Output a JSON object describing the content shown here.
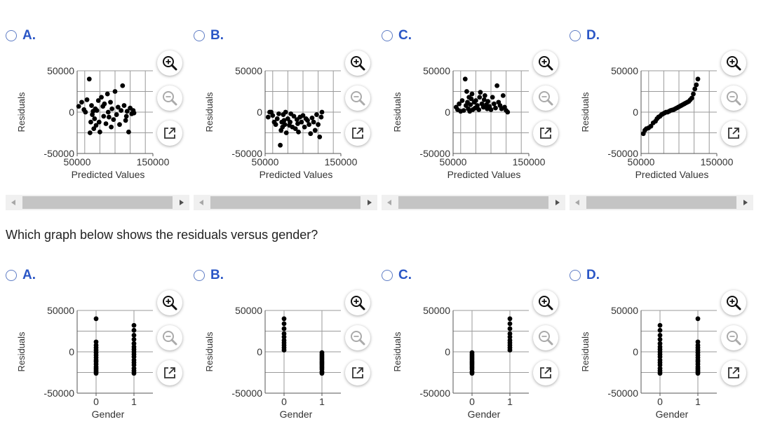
{
  "question2": "Which graph below shows the residuals versus gender?",
  "colors": {
    "radio": "#5f7dc5",
    "letter": "#2a56c6",
    "points": "#000000",
    "grid": "#9a9a9a"
  },
  "icons": [
    "zoom-in-icon",
    "zoom-out-icon",
    "external-link-icon"
  ],
  "sets": [
    {
      "id": "predicted",
      "options": [
        {
          "letter": "A.",
          "chart_data": {
            "type": "scatter",
            "xlabel": "Predicted Values",
            "ylabel": "Residuals",
            "xlim": [
              50000,
              150000
            ],
            "ylim": [
              -50000,
              50000
            ],
            "xticks": [
              50000,
              150000
            ],
            "yticks": [
              50000,
              0,
              -50000
            ],
            "x": [
              52000,
              56000,
              59000,
              61000,
              63000,
              66000,
              67000,
              68000,
              69000,
              70000,
              71000,
              72000,
              73000,
              74000,
              75000,
              76000,
              78000,
              79000,
              80000,
              82000,
              84000,
              85000,
              86000,
              88000,
              90000,
              91000,
              92000,
              94000,
              95000,
              96000,
              98000,
              100000,
              102000,
              104000,
              106000,
              108000,
              110000,
              112000,
              114000,
              115000,
              116000,
              118000,
              120000,
              122000,
              124000,
              125000
            ],
            "y": [
              7000,
              12000,
              3000,
              0,
              15000,
              40000,
              -25000,
              -12000,
              8000,
              -3000,
              1000,
              -20000,
              -8000,
              4000,
              -16000,
              2000,
              14000,
              -12000,
              -24000,
              18000,
              7000,
              -5000,
              10000,
              -14000,
              22000,
              0,
              -6000,
              12000,
              -18000,
              4000,
              -9000,
              25000,
              -3000,
              6000,
              -15000,
              2000,
              32000,
              8000,
              -10000,
              -5000,
              1000,
              -24000,
              5000,
              -2000,
              2000,
              -1000
            ]
          }
        },
        {
          "letter": "B.",
          "chart_data": {
            "type": "scatter",
            "xlabel": "Predicted Values",
            "ylabel": "Residuals",
            "xlim": [
              50000,
              150000
            ],
            "ylim": [
              -50000,
              50000
            ],
            "xticks": [
              50000,
              150000
            ],
            "yticks": [
              50000,
              0,
              -50000
            ],
            "x": [
              54000,
              56000,
              58000,
              60000,
              62000,
              64000,
              66000,
              68000,
              70000,
              71000,
              72000,
              73000,
              74000,
              75000,
              76000,
              77000,
              78000,
              80000,
              82000,
              83000,
              84000,
              86000,
              88000,
              90000,
              92000,
              93000,
              94000,
              96000,
              98000,
              100000,
              102000,
              104000,
              106000,
              108000,
              110000,
              112000,
              114000,
              116000,
              118000,
              120000,
              122000,
              124000,
              125000
            ],
            "y": [
              -6000,
              0,
              0,
              -4000,
              -12000,
              -15000,
              -8000,
              -2000,
              -40000,
              -22000,
              -12000,
              -18000,
              -3000,
              -10000,
              -15000,
              0,
              -25000,
              -8000,
              -16000,
              -12000,
              -2000,
              -18000,
              -5000,
              -20000,
              -9000,
              -14000,
              -24000,
              -6000,
              -12000,
              -4000,
              -18000,
              -8000,
              -10000,
              -15000,
              -26000,
              -7000,
              -12000,
              -22000,
              -3000,
              -15000,
              -30000,
              -6000,
              0
            ]
          }
        },
        {
          "letter": "C.",
          "chart_data": {
            "type": "scatter",
            "xlabel": "Predicted Values",
            "ylabel": "Residuals",
            "xlim": [
              50000,
              150000
            ],
            "ylim": [
              -50000,
              50000
            ],
            "xticks": [
              50000,
              150000
            ],
            "yticks": [
              50000,
              0,
              -50000
            ],
            "x": [
              54000,
              56000,
              58000,
              60000,
              62000,
              64000,
              66000,
              67000,
              68000,
              69000,
              70000,
              71000,
              72000,
              73000,
              74000,
              75000,
              76000,
              78000,
              79000,
              80000,
              82000,
              84000,
              85000,
              86000,
              88000,
              90000,
              91000,
              92000,
              94000,
              95000,
              96000,
              98000,
              100000,
              102000,
              104000,
              106000,
              108000,
              110000,
              112000,
              114000,
              116000,
              118000,
              120000,
              122000
            ],
            "y": [
              6000,
              3000,
              10000,
              1000,
              14000,
              2000,
              40000,
              8000,
              25000,
              12000,
              4000,
              18000,
              1000,
              9000,
              16000,
              22000,
              3000,
              12000,
              5000,
              14000,
              8000,
              3000,
              18000,
              24000,
              10000,
              6000,
              15000,
              20000,
              9000,
              4000,
              13000,
              7000,
              3000,
              18000,
              10000,
              5000,
              32000,
              12000,
              8000,
              4000,
              20000,
              6000,
              2000,
              0
            ]
          }
        },
        {
          "letter": "D.",
          "chart_data": {
            "type": "scatter",
            "xlabel": "Predicted Values",
            "ylabel": "Residuals",
            "xlim": [
              50000,
              150000
            ],
            "ylim": [
              -50000,
              50000
            ],
            "xticks": [
              50000,
              150000
            ],
            "yticks": [
              50000,
              0,
              -50000
            ],
            "x": [
              53000,
              55000,
              57000,
              60000,
              63000,
              66000,
              69000,
              71000,
              73000,
              75000,
              77000,
              79000,
              81000,
              83000,
              85000,
              87000,
              89000,
              91000,
              93000,
              95000,
              97000,
              99000,
              101000,
              103000,
              105000,
              107000,
              109000,
              111000,
              113000,
              115000,
              117000,
              119000,
              121000,
              123000,
              125000
            ],
            "y": [
              -26000,
              -22000,
              -20000,
              -19000,
              -17000,
              -13000,
              -11000,
              -8000,
              -6000,
              -5000,
              -3000,
              -2000,
              -1000,
              0,
              0,
              1000,
              2000,
              2500,
              3000,
              4000,
              5000,
              6000,
              7000,
              8000,
              9000,
              10000,
              11000,
              12000,
              13000,
              15000,
              17000,
              22000,
              28000,
              33000,
              40000
            ]
          }
        }
      ]
    },
    {
      "id": "gender",
      "options": [
        {
          "letter": "A.",
          "chart_data": {
            "type": "scatter",
            "xlabel": "Gender",
            "ylabel": "Residuals",
            "xlim": [
              -0.5,
              1.5
            ],
            "ylim": [
              -50000,
              50000
            ],
            "xticks": [
              0,
              1
            ],
            "yticks": [
              50000,
              0,
              -50000
            ],
            "x": [
              0,
              0,
              0,
              0,
              0,
              0,
              0,
              0,
              0,
              0,
              0,
              0,
              0,
              0,
              0,
              0,
              1,
              1,
              1,
              1,
              1,
              1,
              1,
              1,
              1,
              1,
              1,
              1,
              1,
              1,
              1,
              1
            ],
            "y": [
              40000,
              12000,
              8000,
              5000,
              2000,
              -1000,
              -4000,
              -7000,
              -10000,
              -12000,
              -15000,
              -18000,
              -20000,
              -22000,
              -24000,
              -26000,
              32000,
              26000,
              20000,
              15000,
              10000,
              6000,
              3000,
              0,
              -3000,
              -6000,
              -10000,
              -13000,
              -16000,
              -20000,
              -23000,
              -26000
            ]
          }
        },
        {
          "letter": "B.",
          "chart_data": {
            "type": "scatter",
            "xlabel": "Gender",
            "ylabel": "Residuals",
            "xlim": [
              -0.5,
              1.5
            ],
            "ylim": [
              -50000,
              50000
            ],
            "xticks": [
              0,
              1
            ],
            "yticks": [
              50000,
              0,
              -50000
            ],
            "x": [
              0,
              0,
              0,
              0,
              0,
              0,
              0,
              0,
              0,
              0,
              1,
              1,
              1,
              1,
              1,
              1,
              1,
              1,
              1,
              1,
              1,
              1,
              1
            ],
            "y": [
              40000,
              34000,
              28000,
              22000,
              18000,
              14000,
              11000,
              8000,
              5000,
              2000,
              -1000,
              -3000,
              -5000,
              -7000,
              -9000,
              -11000,
              -13000,
              -15000,
              -17000,
              -19000,
              -21000,
              -24000,
              -26000
            ]
          }
        },
        {
          "letter": "C.",
          "chart_data": {
            "type": "scatter",
            "xlabel": "Gender",
            "ylabel": "Residuals",
            "xlim": [
              -0.5,
              1.5
            ],
            "ylim": [
              -50000,
              50000
            ],
            "xticks": [
              0,
              1
            ],
            "yticks": [
              50000,
              0,
              -50000
            ],
            "x": [
              0,
              0,
              0,
              0,
              0,
              0,
              0,
              0,
              0,
              0,
              0,
              0,
              0,
              1,
              1,
              1,
              1,
              1,
              1,
              1,
              1,
              1,
              1
            ],
            "y": [
              -1000,
              -3000,
              -5000,
              -7000,
              -9000,
              -11000,
              -13000,
              -15000,
              -17000,
              -19000,
              -21000,
              -24000,
              -26000,
              40000,
              34000,
              28000,
              22000,
              18000,
              14000,
              11000,
              8000,
              5000,
              2000
            ]
          }
        },
        {
          "letter": "D.",
          "chart_data": {
            "type": "scatter",
            "xlabel": "Gender",
            "ylabel": "Residuals",
            "xlim": [
              -0.5,
              1.5
            ],
            "ylim": [
              -50000,
              50000
            ],
            "xticks": [
              0,
              1
            ],
            "yticks": [
              50000,
              0,
              -50000
            ],
            "x": [
              0,
              0,
              0,
              0,
              0,
              0,
              0,
              0,
              0,
              0,
              0,
              0,
              0,
              0,
              0,
              0,
              1,
              1,
              1,
              1,
              1,
              1,
              1,
              1,
              1,
              1,
              1,
              1,
              1,
              1,
              1,
              1
            ],
            "y": [
              32000,
              26000,
              20000,
              15000,
              10000,
              6000,
              3000,
              0,
              -3000,
              -6000,
              -10000,
              -13000,
              -16000,
              -20000,
              -23000,
              -26000,
              40000,
              12000,
              8000,
              5000,
              2000,
              -1000,
              -4000,
              -7000,
              -10000,
              -12000,
              -15000,
              -18000,
              -20000,
              -22000,
              -24000,
              -26000
            ]
          }
        }
      ]
    }
  ]
}
